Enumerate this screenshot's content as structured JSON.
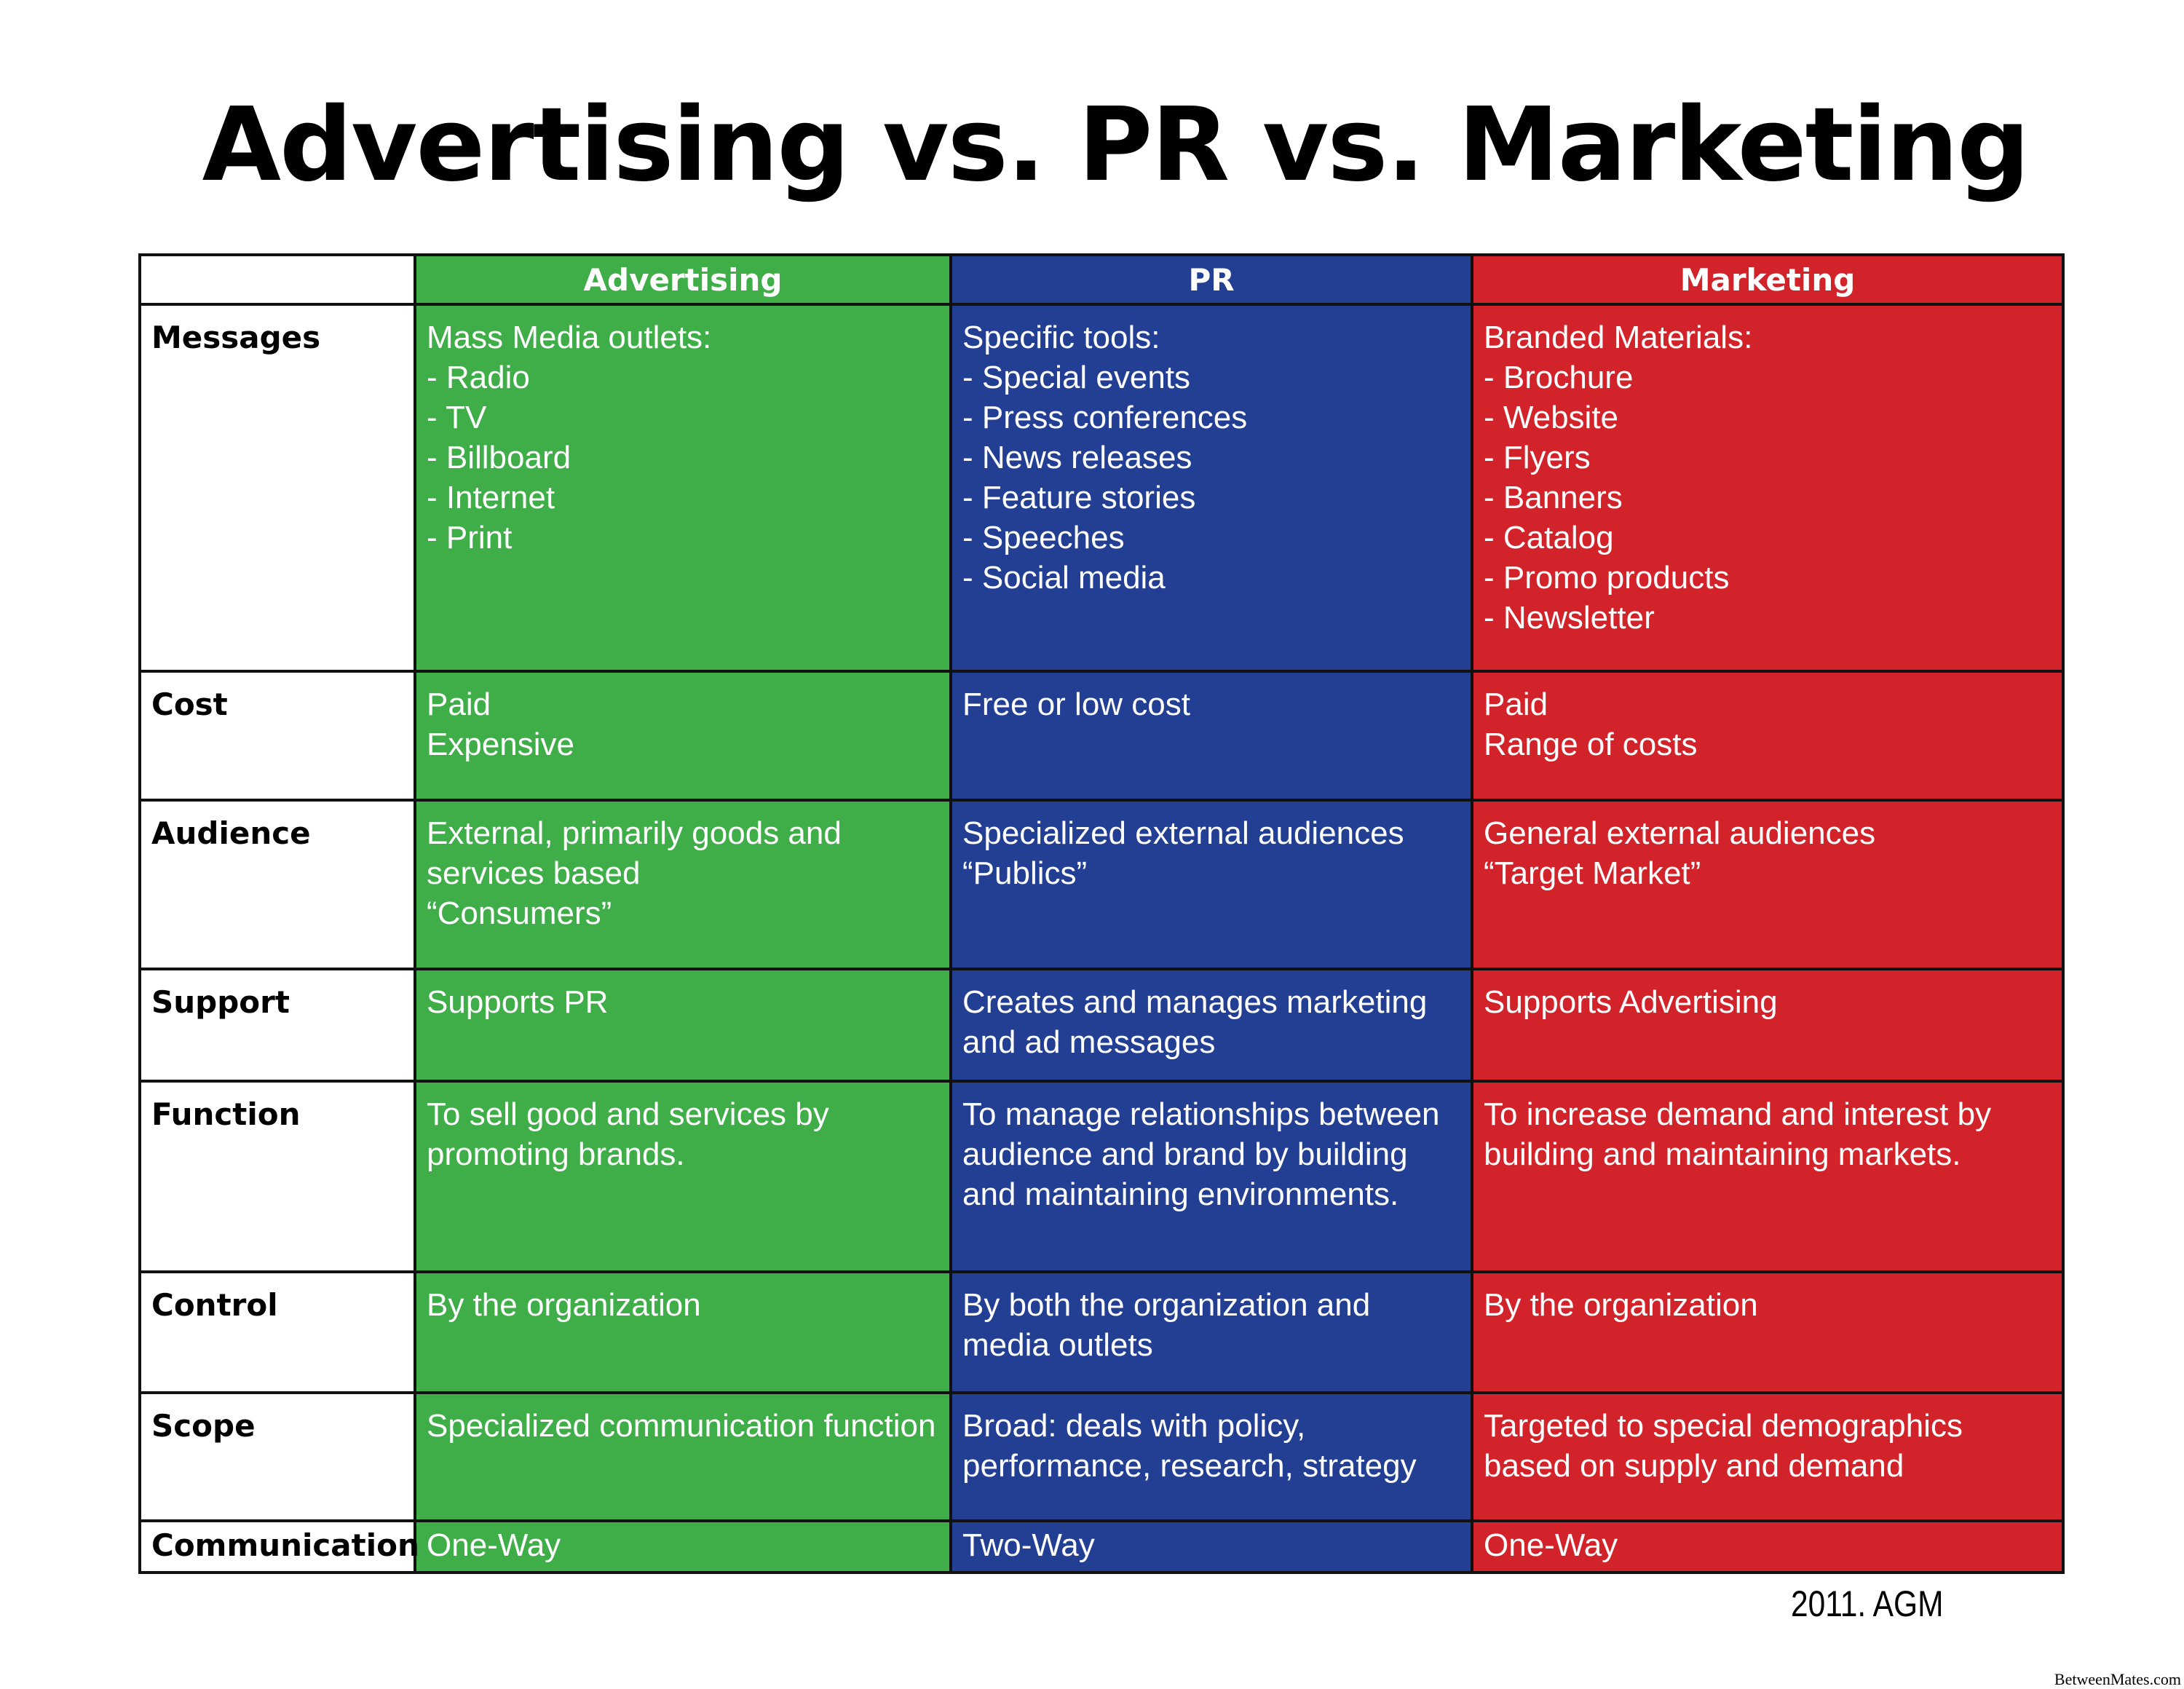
{
  "title": "Advertising vs. PR vs. Marketing",
  "colors": {
    "advertising": "#3fae49",
    "pr": "#233f93",
    "marketing": "#d2232a"
  },
  "columns": [
    "Advertising",
    "PR",
    "Marketing"
  ],
  "rows": [
    {
      "label": "Messages",
      "cells": [
        "Mass Media outlets:\n- Radio\n- TV\n- Billboard\n- Internet\n- Print",
        "Specific tools:\n- Special events\n- Press conferences\n- News releases\n- Feature stories\n- Speeches\n- Social media",
        "Branded Materials:\n- Brochure\n- Website\n- Flyers\n- Banners\n- Catalog\n- Promo products\n- Newsletter"
      ]
    },
    {
      "label": "Cost",
      "cells": [
        "Paid\nExpensive",
        "Free or low cost",
        "Paid\nRange of costs"
      ]
    },
    {
      "label": "Audience",
      "cells": [
        "External, primarily goods and services based\n“Consumers”",
        "Specialized external audiences\n“Publics”",
        "General external audiences\n“Target Market”"
      ]
    },
    {
      "label": "Support",
      "cells": [
        "Supports PR",
        "Creates and manages marketing and ad messages",
        "Supports Advertising"
      ]
    },
    {
      "label": "Function",
      "cells": [
        "To sell good and services by promoting brands.",
        "To manage relationships between audience and brand by building and maintaining environments.",
        "To increase demand and interest by building and maintaining markets."
      ]
    },
    {
      "label": "Control",
      "cells": [
        "By the organization",
        "By both the organization and media outlets",
        "By the organization"
      ]
    },
    {
      "label": "Scope",
      "cells": [
        "Specialized communication function",
        "Broad: deals with policy, performance, research, strategy",
        "Targeted to special demographics based on supply and demand"
      ]
    },
    {
      "label": "Communication",
      "cells": [
        "One-Way",
        "Two-Way",
        "One-Way"
      ]
    }
  ],
  "credit": "2011. AGM",
  "watermark": "BetweenMates.com"
}
